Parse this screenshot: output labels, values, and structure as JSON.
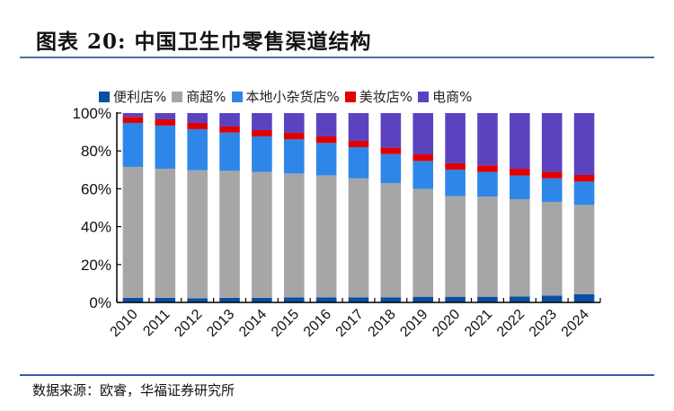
{
  "figure": {
    "title": "图表 20:  中国卫生巾零售渠道结构",
    "source": "数据来源：欧睿，华福证券研究所"
  },
  "chart_data": {
    "type": "bar",
    "stacked": true,
    "title": "中国卫生巾零售渠道结构",
    "xlabel": "",
    "ylabel": "",
    "ylim": [
      0,
      100
    ],
    "yticks": [
      "0%",
      "20%",
      "40%",
      "60%",
      "80%",
      "100%"
    ],
    "ytick_values": [
      0,
      20,
      40,
      60,
      80,
      100
    ],
    "grid": false,
    "legend_position": "top",
    "categories": [
      "2010",
      "2011",
      "2012",
      "2013",
      "2014",
      "2015",
      "2016",
      "2017",
      "2018",
      "2019",
      "2020",
      "2021",
      "2022",
      "2023",
      "2024"
    ],
    "series": [
      {
        "name": "便利店%",
        "color": "#0a4fa3",
        "values": [
          2.4,
          2.4,
          2.2,
          2.4,
          2.4,
          2.6,
          2.6,
          2.6,
          2.7,
          3.0,
          3.0,
          3.0,
          3.1,
          3.6,
          4.4
        ]
      },
      {
        "name": "商超%",
        "color": "#a6a6a6",
        "values": [
          69.2,
          68.2,
          67.6,
          67.1,
          66.5,
          65.5,
          64.5,
          62.9,
          60.3,
          57.0,
          53.2,
          52.9,
          51.4,
          49.5,
          47.1
        ]
      },
      {
        "name": "本地小杂货店%",
        "color": "#2e86e8",
        "values": [
          23.2,
          22.8,
          21.7,
          20.2,
          18.8,
          18.0,
          17.1,
          16.5,
          15.3,
          14.7,
          13.9,
          13.0,
          12.5,
          12.4,
          12.3
        ]
      },
      {
        "name": "美妆店%",
        "color": "#e00000",
        "values": [
          3.2,
          3.3,
          3.3,
          3.2,
          3.3,
          3.5,
          3.5,
          3.3,
          3.4,
          3.5,
          3.4,
          3.5,
          3.6,
          3.5,
          3.5
        ]
      },
      {
        "name": "电商%",
        "color": "#5b43c0",
        "values": [
          2.0,
          3.3,
          5.2,
          7.1,
          9.0,
          10.4,
          12.3,
          14.7,
          18.3,
          21.8,
          26.5,
          27.6,
          29.4,
          31.0,
          32.7
        ]
      }
    ]
  }
}
